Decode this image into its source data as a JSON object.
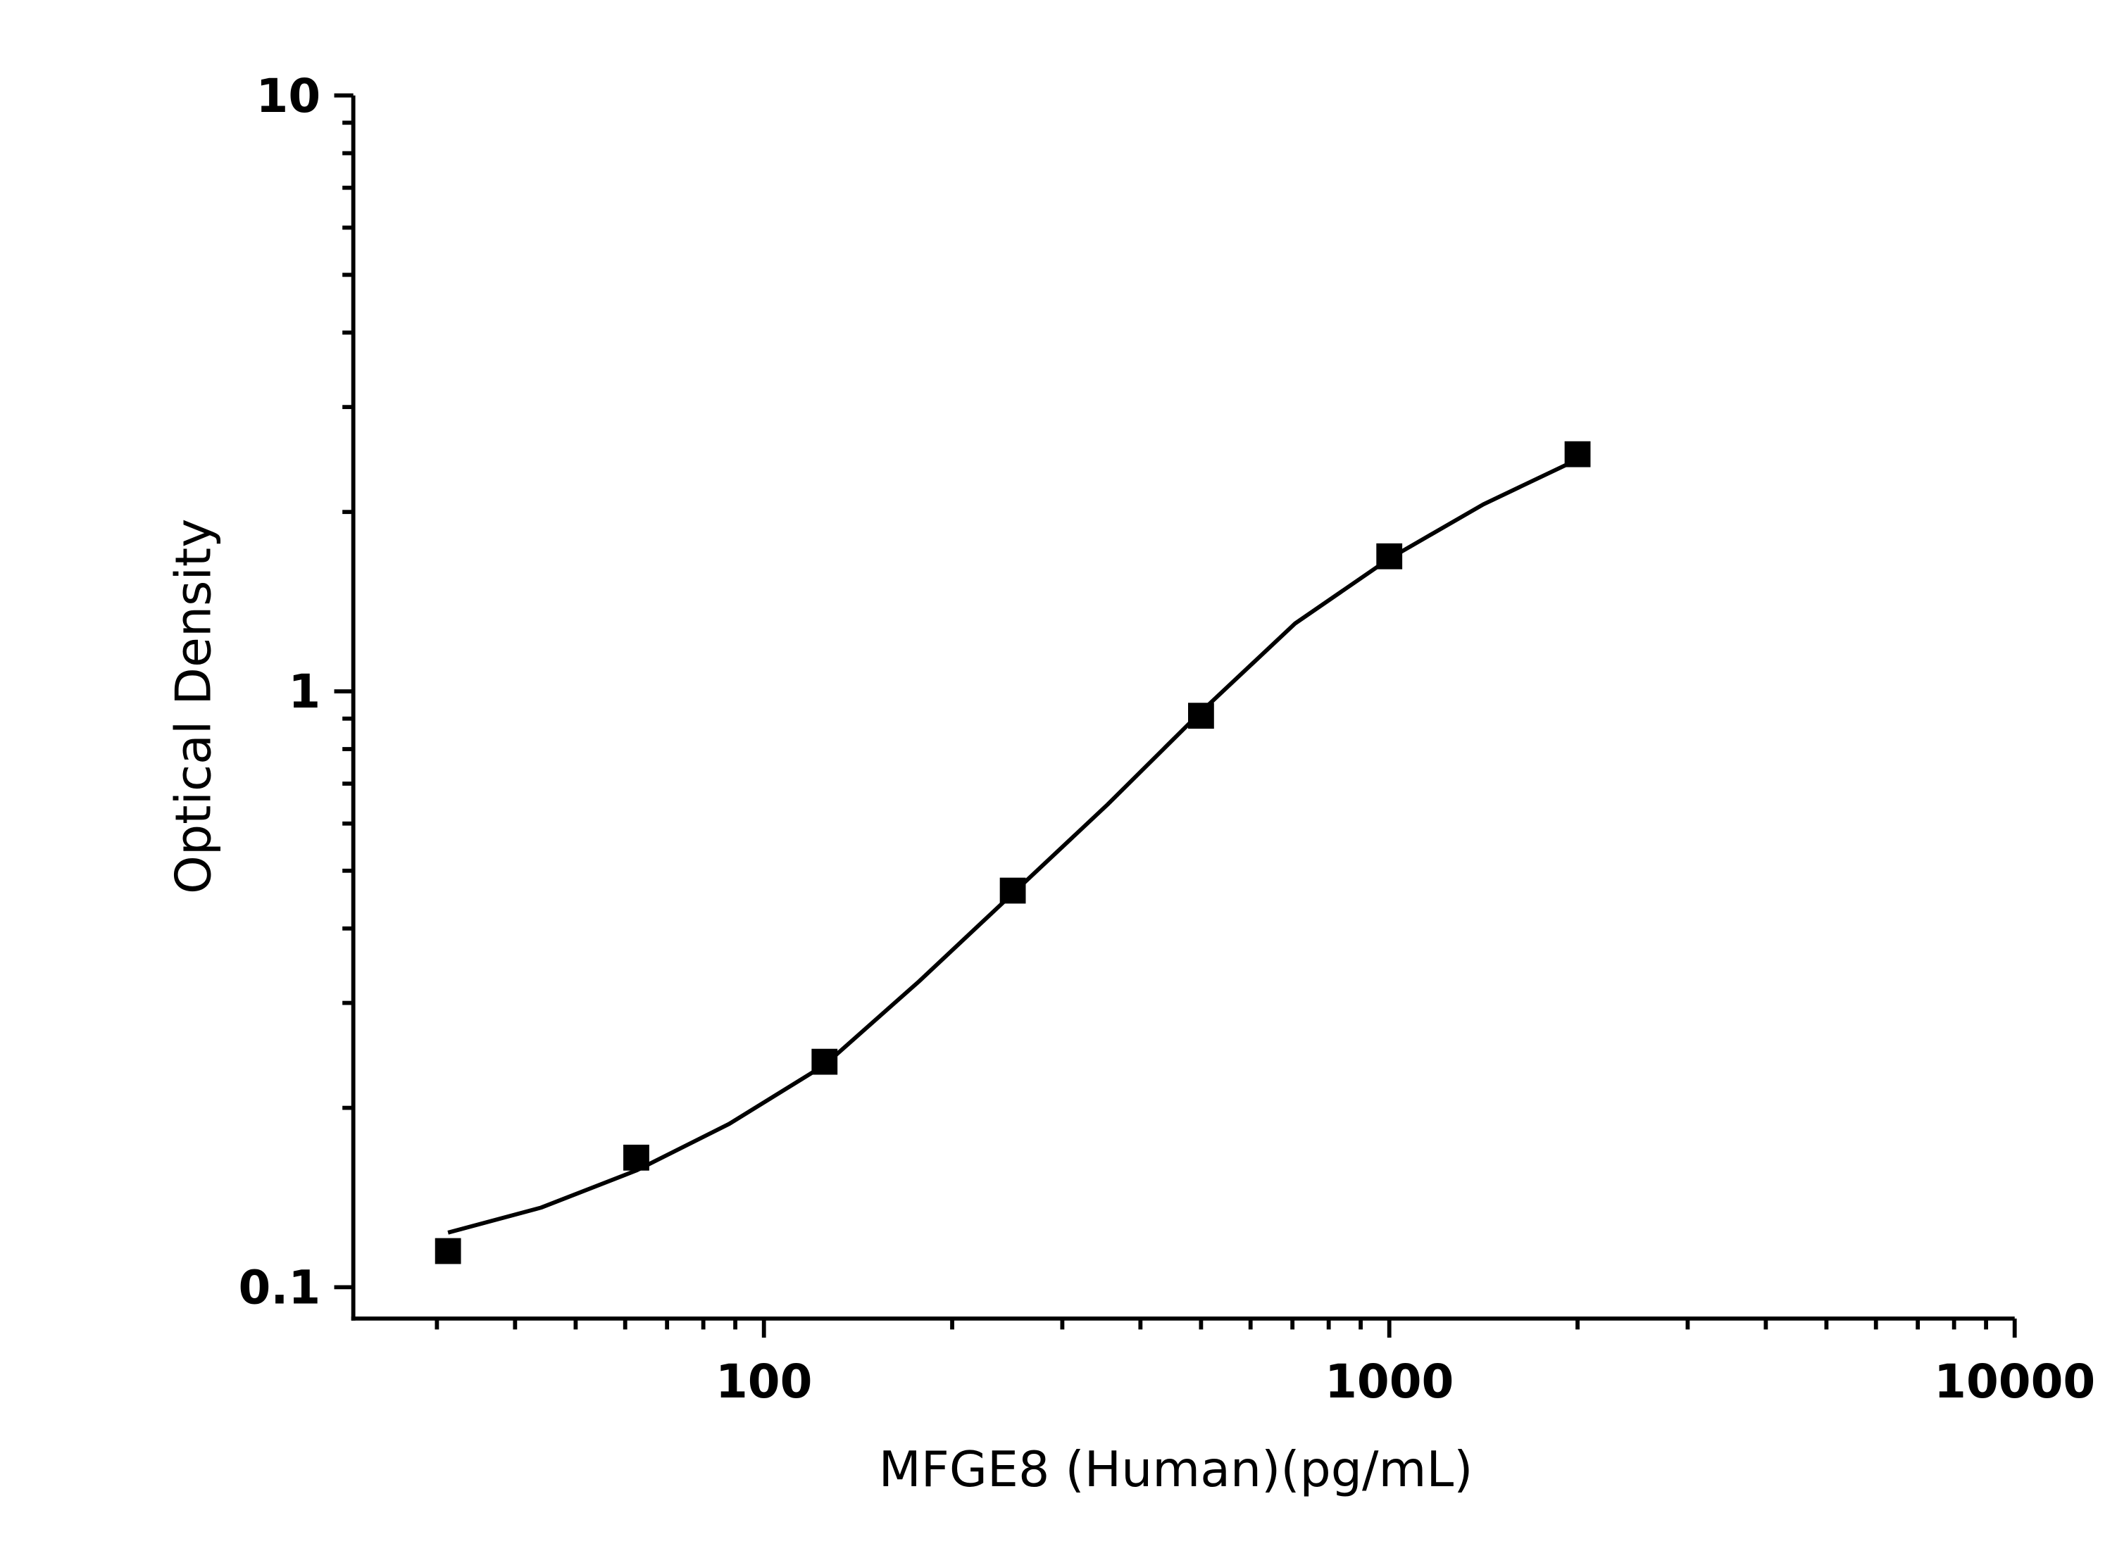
{
  "chart_data": {
    "type": "scatter",
    "x_label": "MFGE8 (Human)(pg/mL)",
    "y_label": "Optical Density",
    "x_log": true,
    "y_log": true,
    "xlim": [
      22.05,
      10000
    ],
    "ylim": [
      0.0886,
      10
    ],
    "xticks": [
      100,
      1000,
      10000
    ],
    "yticks": [
      0.1,
      1,
      10
    ],
    "xminorticks": [
      30,
      40,
      50,
      60,
      70,
      80,
      90,
      200,
      300,
      400,
      500,
      600,
      700,
      800,
      900,
      2000,
      3000,
      4000,
      5000,
      6000,
      7000,
      8000,
      9000
    ],
    "yminorticks": [
      0.2,
      0.3,
      0.4,
      0.5,
      0.6,
      0.7,
      0.8,
      0.9,
      2,
      3,
      4,
      5,
      6,
      7,
      8,
      9
    ],
    "series": [
      {
        "color": "#000000",
        "x": [
          31.25,
          62.5,
          125,
          250,
          500,
          1000,
          2000
        ],
        "values": [
          0.115,
          0.165,
          0.239,
          0.463,
          0.91,
          1.685,
          2.5
        ]
      }
    ],
    "fit": {
      "color": "#000000",
      "x": [
        31.25,
        44,
        62.5,
        88,
        125,
        177,
        250,
        354,
        500,
        707,
        1000,
        1414,
        2000
      ],
      "values": [
        0.1235,
        0.136,
        0.157,
        0.188,
        0.236,
        0.326,
        0.458,
        0.645,
        0.924,
        1.3,
        1.67,
        2.06,
        2.45
      ]
    }
  }
}
